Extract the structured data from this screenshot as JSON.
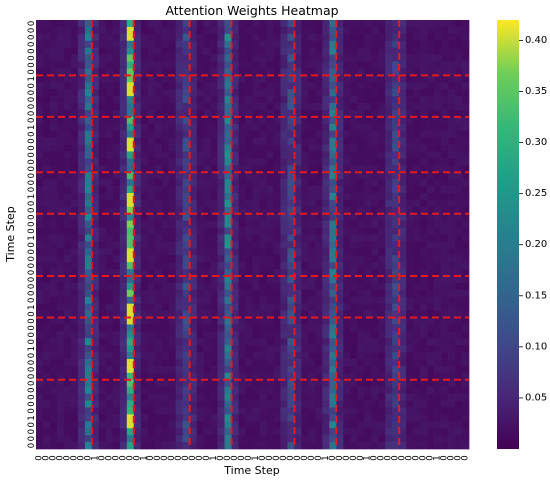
{
  "chart_data": {
    "type": "heatmap",
    "title": "Attention Weights Heatmap",
    "xlabel": "Time Step",
    "ylabel": "Time Step",
    "n_rows": 62,
    "n_cols": 62,
    "row_tick_labels": [
      "0",
      "0",
      "0",
      "0",
      "0",
      "0",
      "0",
      "0",
      "1",
      "0",
      "0",
      "0",
      "0",
      "0",
      "0",
      "1",
      "0",
      "0",
      "0",
      "0",
      "0",
      "0",
      "0",
      "0",
      "0",
      "1",
      "0",
      "0",
      "0",
      "0",
      "0",
      "1",
      "0",
      "0",
      "0",
      "0",
      "0",
      "0",
      "0",
      "0",
      "0",
      "1",
      "0",
      "0",
      "0",
      "0",
      "0",
      "1",
      "0",
      "0",
      "0",
      "0",
      "0",
      "0",
      "0",
      "0",
      "0",
      "1",
      "0",
      "0",
      "0",
      "0"
    ],
    "col_tick_labels": [
      "0",
      "0",
      "0",
      "0",
      "0",
      "0",
      "0",
      "0",
      "1",
      "0",
      "0",
      "0",
      "0",
      "0",
      "0",
      "1",
      "0",
      "0",
      "0",
      "0",
      "0",
      "0",
      "0",
      "0",
      "0",
      "1",
      "0",
      "0",
      "0",
      "0",
      "0",
      "1",
      "0",
      "0",
      "0",
      "0",
      "0",
      "0",
      "0",
      "0",
      "0",
      "1",
      "0",
      "0",
      "0",
      "0",
      "0",
      "1",
      "0",
      "0",
      "0",
      "0",
      "0",
      "0",
      "0",
      "0",
      "0",
      "1",
      "0",
      "0",
      "0",
      "0"
    ],
    "separator_rows": [
      8,
      14,
      22,
      28,
      37,
      43,
      52
    ],
    "separator_cols": [
      8,
      14,
      22,
      28,
      37,
      43,
      52
    ],
    "column_weight_profile": [
      {
        "col": 7,
        "mean": 0.15
      },
      {
        "col": 13,
        "mean": 0.28
      },
      {
        "col": 21,
        "mean": 0.09
      },
      {
        "col": 27,
        "mean": 0.17
      },
      {
        "col": 36,
        "mean": 0.09
      },
      {
        "col": 42,
        "mean": 0.15
      },
      {
        "col": 51,
        "mean": 0.08
      }
    ],
    "background_weight": 0.02,
    "colorbar": {
      "min": 0.0,
      "max": 0.42,
      "ticks": [
        "0.05",
        "0.10",
        "0.15",
        "0.20",
        "0.25",
        "0.30",
        "0.35",
        "0.40"
      ],
      "colormap": "viridis"
    },
    "separator_color": "#e41a1c",
    "grid": false
  }
}
